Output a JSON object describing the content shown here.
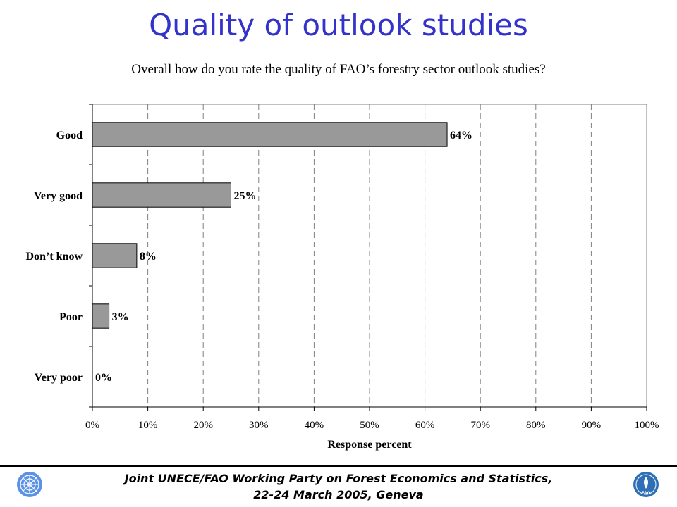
{
  "slide": {
    "title": "Quality of outlook studies"
  },
  "footer": {
    "line1": "Joint UNECE/FAO Working Party on Forest Economics and Statistics,",
    "line2": "22-24 March 2005, Geneva",
    "un_logo_icon": "un-emblem-icon",
    "fao_logo_icon": "fao-emblem-icon",
    "fao_logo_text": "FAO"
  },
  "chart_data": {
    "type": "bar",
    "orientation": "horizontal",
    "title": "Overall how do you rate the quality of FAO’s forestry sector outlook studies?",
    "xlabel": "Response percent",
    "ylabel": "",
    "categories": [
      "Good",
      "Very good",
      "Don’t know",
      "Poor",
      "Very poor"
    ],
    "values": [
      64,
      25,
      8,
      3,
      0
    ],
    "data_labels": [
      "64%",
      "25%",
      "8%",
      "3%",
      "0%"
    ],
    "xlim": [
      0,
      100
    ],
    "x_ticks": [
      "0%",
      "10%",
      "20%",
      "30%",
      "40%",
      "50%",
      "60%",
      "70%",
      "80%",
      "90%",
      "100%"
    ],
    "grid": "vertical dashed",
    "legend": "none",
    "bar_color": "#999999"
  }
}
